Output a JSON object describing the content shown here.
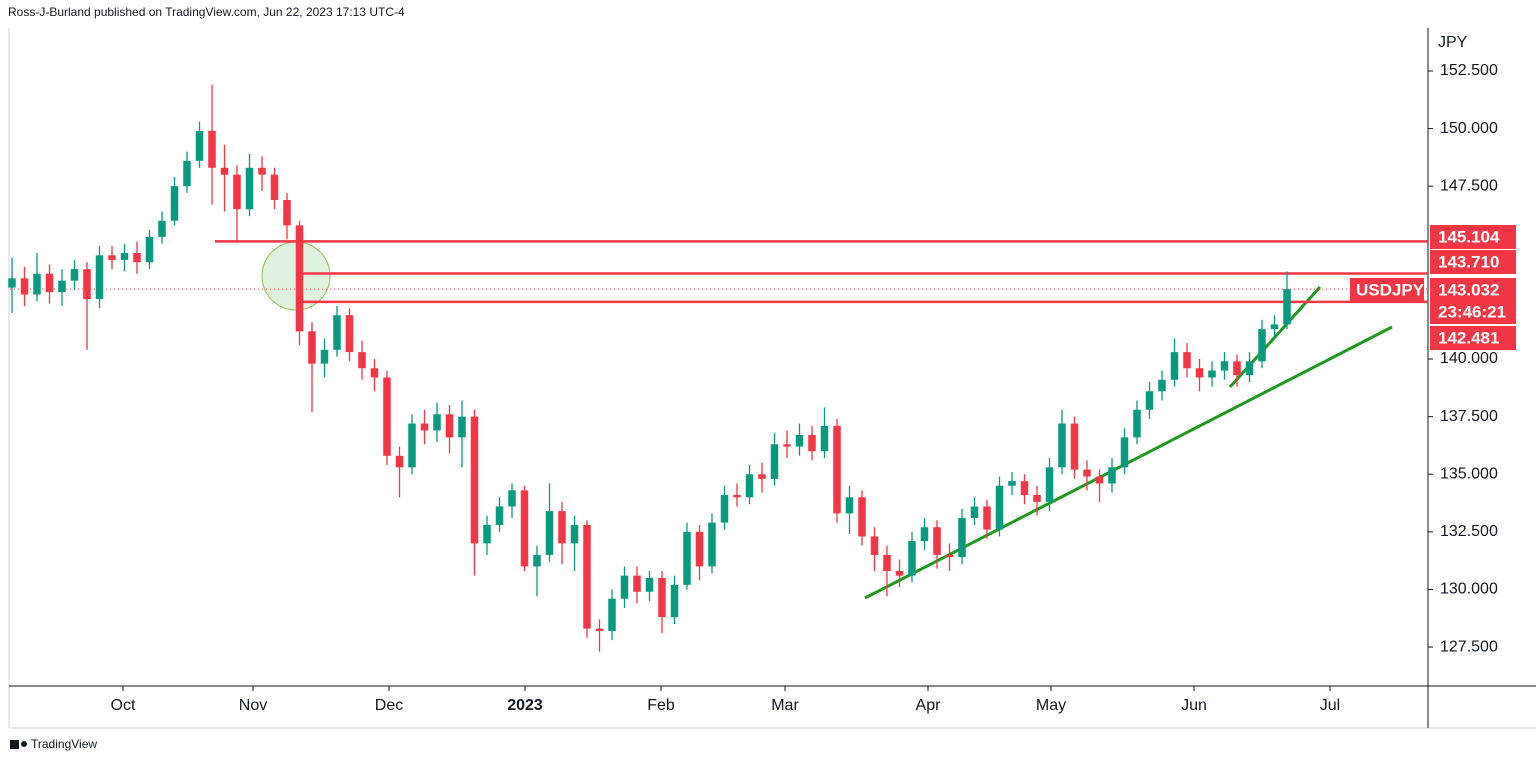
{
  "header": "Ross-J-Burland published on TradingView.com, Jun 22, 2023 17:13 UTC-4",
  "footer": "TradingView",
  "chart_data": {
    "type": "candlestick",
    "symbol": "USDJPY",
    "unit": "JPY",
    "up_color": "#089981",
    "down_color": "#f23645",
    "level_color": "#f23645",
    "trend_color": "#1e9a1e",
    "open": [
      143.1,
      143.5,
      142.8,
      143.7,
      142.9,
      143.4,
      143.9,
      142.6,
      144.5,
      144.3,
      144.6,
      144.2,
      145.3,
      146.0,
      147.5,
      148.6,
      149.9,
      148.3,
      148.0,
      146.5,
      148.3,
      148.0,
      146.9,
      145.8,
      141.2,
      139.8,
      140.4,
      141.9,
      140.3,
      139.6,
      139.2,
      135.8,
      135.3,
      137.2,
      136.9,
      137.6,
      136.6,
      137.5,
      132.0,
      132.8,
      133.6,
      134.3,
      131.0,
      131.5,
      133.4,
      132.0,
      132.8,
      128.3,
      128.2,
      129.6,
      130.6,
      129.9,
      130.5,
      128.8,
      130.2,
      132.5,
      131.0,
      132.9,
      134.1,
      134.0,
      135.0,
      134.8,
      136.3,
      136.2,
      136.7,
      136.0,
      137.1,
      133.3,
      134.0,
      132.3,
      131.5,
      130.8,
      130.6,
      132.1,
      132.7,
      131.5,
      131.4,
      133.1,
      133.6,
      132.6,
      134.5,
      134.7,
      134.1,
      133.8,
      135.3,
      137.2,
      135.2,
      134.9,
      134.6,
      135.3,
      136.6,
      137.8,
      138.6,
      139.1,
      140.3,
      139.6,
      139.2,
      139.5,
      139.9,
      139.3,
      139.9,
      141.3,
      141.5
    ],
    "high": [
      144.4,
      144.0,
      144.6,
      144.1,
      143.9,
      144.3,
      144.2,
      144.9,
      144.9,
      145.0,
      145.1,
      145.6,
      146.4,
      147.9,
      149.0,
      150.3,
      151.9,
      149.3,
      148.4,
      148.9,
      148.8,
      148.3,
      147.2,
      146.0,
      141.6,
      140.9,
      142.3,
      142.2,
      140.8,
      140.0,
      139.5,
      136.2,
      137.6,
      137.8,
      138.1,
      138.0,
      138.2,
      137.8,
      133.2,
      134.0,
      134.6,
      134.5,
      131.9,
      134.6,
      133.8,
      133.2,
      133.0,
      128.7,
      130.0,
      131.0,
      131.0,
      130.8,
      130.8,
      130.6,
      132.9,
      132.8,
      133.3,
      134.5,
      134.6,
      135.4,
      135.5,
      136.8,
      136.9,
      137.2,
      137.1,
      137.9,
      137.4,
      134.5,
      134.3,
      132.7,
      131.9,
      131.3,
      132.5,
      133.1,
      133.0,
      132.0,
      133.5,
      134.0,
      133.9,
      134.9,
      135.1,
      135.0,
      134.5,
      135.7,
      137.8,
      137.5,
      135.6,
      135.2,
      135.7,
      137.0,
      138.2,
      139.0,
      139.5,
      140.9,
      140.7,
      140.0,
      139.9,
      140.3,
      140.2,
      140.3,
      141.7,
      141.9,
      143.8
    ],
    "low": [
      142.0,
      142.3,
      142.5,
      142.4,
      142.3,
      143.0,
      140.4,
      142.2,
      143.9,
      143.8,
      143.7,
      143.9,
      145.0,
      145.8,
      147.2,
      148.3,
      146.7,
      146.4,
      145.1,
      146.2,
      147.3,
      146.5,
      145.2,
      140.6,
      137.7,
      139.2,
      140.1,
      139.9,
      139.1,
      138.6,
      135.4,
      134.0,
      135.0,
      136.3,
      136.4,
      135.9,
      135.3,
      130.6,
      131.5,
      132.5,
      133.1,
      130.8,
      129.7,
      131.2,
      131.1,
      130.8,
      127.9,
      127.3,
      127.8,
      129.2,
      129.4,
      129.5,
      128.1,
      128.5,
      130.0,
      130.4,
      130.7,
      132.6,
      133.6,
      133.7,
      134.2,
      134.5,
      135.7,
      135.8,
      135.6,
      135.7,
      132.9,
      132.4,
      131.9,
      130.8,
      129.7,
      130.1,
      130.3,
      131.7,
      130.9,
      130.8,
      131.1,
      132.8,
      132.2,
      132.3,
      134.1,
      133.7,
      133.2,
      133.4,
      135.0,
      134.8,
      134.3,
      133.8,
      134.2,
      135.0,
      136.3,
      137.4,
      138.2,
      138.8,
      139.2,
      138.6,
      138.8,
      139.1,
      138.8,
      139.0,
      139.6,
      140.9,
      141.3
    ],
    "close": [
      143.5,
      142.8,
      143.7,
      142.9,
      143.4,
      143.9,
      142.6,
      144.5,
      144.3,
      144.6,
      144.2,
      145.3,
      146.0,
      147.5,
      148.6,
      149.9,
      148.3,
      148.0,
      146.5,
      148.3,
      148.0,
      146.9,
      145.8,
      141.2,
      139.8,
      140.4,
      141.9,
      140.3,
      139.6,
      139.2,
      135.8,
      135.3,
      137.2,
      136.9,
      137.6,
      136.6,
      137.5,
      132.0,
      132.8,
      133.6,
      134.3,
      131.0,
      131.5,
      133.4,
      132.0,
      132.8,
      128.3,
      128.2,
      129.6,
      130.6,
      129.9,
      130.5,
      128.8,
      130.2,
      132.5,
      131.0,
      132.9,
      134.1,
      134.0,
      135.0,
      134.8,
      136.3,
      136.2,
      136.7,
      136.0,
      137.1,
      133.3,
      134.0,
      132.3,
      131.5,
      130.8,
      130.6,
      132.1,
      132.7,
      131.5,
      131.4,
      133.1,
      133.6,
      132.6,
      134.5,
      134.7,
      134.1,
      133.8,
      135.3,
      137.2,
      135.2,
      134.9,
      134.6,
      135.3,
      136.6,
      137.8,
      138.6,
      139.1,
      140.3,
      139.6,
      139.2,
      139.5,
      139.9,
      139.3,
      139.9,
      141.3,
      141.5,
      143.032
    ],
    "xlim": [
      -0.16,
      113.28
    ],
    "xticks": [
      {
        "value": 8.88,
        "label": "Oct"
      },
      {
        "value": 19.28,
        "label": "Nov"
      },
      {
        "value": 30.16,
        "label": "Dec"
      },
      {
        "value": 41.04,
        "label": "2023"
      },
      {
        "value": 51.92,
        "label": "Feb"
      },
      {
        "value": 61.84,
        "label": "Mar"
      },
      {
        "value": 73.28,
        "label": "Apr"
      },
      {
        "value": 83.12,
        "label": "May"
      },
      {
        "value": 94.56,
        "label": "Jun"
      },
      {
        "value": 105.44,
        "label": "Jul"
      }
    ],
    "ylim": [
      125.81,
      155.58
    ],
    "yticks": [
      {
        "value": 152.5,
        "label": "152.500"
      },
      {
        "value": 150,
        "label": "150.000"
      },
      {
        "value": 147.5,
        "label": "147.500"
      },
      {
        "value": 140,
        "label": "140.000"
      },
      {
        "value": 137.5,
        "label": "137.500"
      },
      {
        "value": 135,
        "label": "135.000"
      },
      {
        "value": 132.5,
        "label": "132.500"
      },
      {
        "value": 130,
        "label": "130.000"
      },
      {
        "value": 127.5,
        "label": "127.500"
      }
    ],
    "levels": [
      {
        "value": 145.104,
        "label": "145.104"
      },
      {
        "value": 143.71,
        "label": "143.710"
      },
      {
        "value": 142.481,
        "label": "142.481"
      }
    ],
    "last_price": {
      "value": 143.032,
      "label": "143.032"
    },
    "countdown": "23:46:21"
  }
}
